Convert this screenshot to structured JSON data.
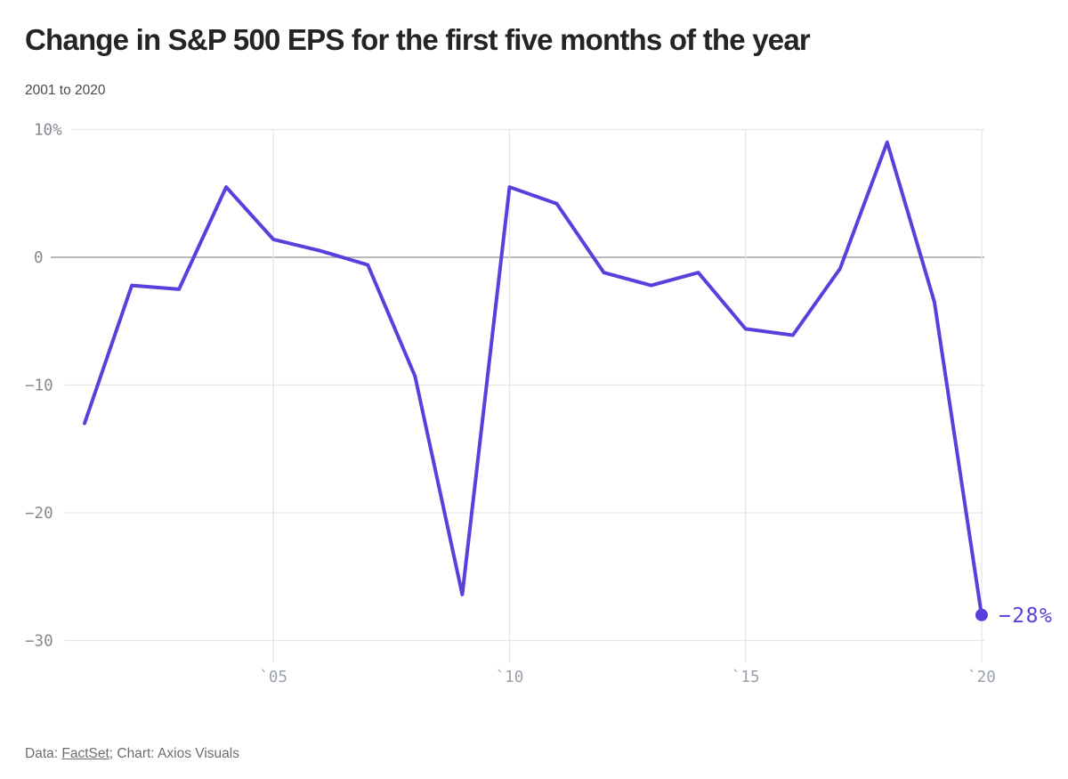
{
  "header": {
    "title": "Change in S&P 500 EPS for the first five months of the year",
    "subtitle": "2001 to 2020"
  },
  "chart_data": {
    "type": "line",
    "title": "Change in S&P 500 EPS for the first five months of the year",
    "subtitle": "2001 to 2020",
    "units": "%",
    "x": [
      2001,
      2002,
      2003,
      2004,
      2005,
      2006,
      2007,
      2008,
      2009,
      2010,
      2011,
      2012,
      2013,
      2014,
      2015,
      2016,
      2017,
      2018,
      2019,
      2020
    ],
    "values": [
      -13,
      -2.2,
      -2.5,
      5.5,
      1.4,
      0.5,
      -0.6,
      -9.3,
      -26.4,
      5.5,
      4.2,
      -1.2,
      -2.2,
      -1.2,
      -5.6,
      -6.1,
      -0.9,
      9,
      -3.5,
      -28
    ],
    "ylim": [
      -30,
      10
    ],
    "grid": true,
    "legend": false,
    "y_ticks": [
      {
        "value": 10,
        "label": "10%"
      },
      {
        "value": 0,
        "label": "0"
      },
      {
        "value": -10,
        "label": "−10"
      },
      {
        "value": -20,
        "label": "−20"
      },
      {
        "value": -30,
        "label": "−30"
      }
    ],
    "x_ticks": [
      {
        "value": 2005,
        "label": "`05"
      },
      {
        "value": 2010,
        "label": "`10"
      },
      {
        "value": 2015,
        "label": "`15"
      },
      {
        "value": 2020,
        "label": "`20"
      }
    ],
    "end_point": {
      "x": 2020,
      "value": -28,
      "label": "−28%"
    },
    "colors": {
      "line": "#5840dc",
      "end_dot": "#5840dc",
      "end_label": "#5840dc",
      "grid": "#e5e5e7",
      "zero_line": "#a1a1a1",
      "y_axis_labels": "#848a92",
      "x_axis_labels": "#9aa1aa"
    }
  },
  "footer": {
    "prefix": "Data: ",
    "source": "FactSet",
    "suffix": "; Chart: Axios Visuals"
  }
}
